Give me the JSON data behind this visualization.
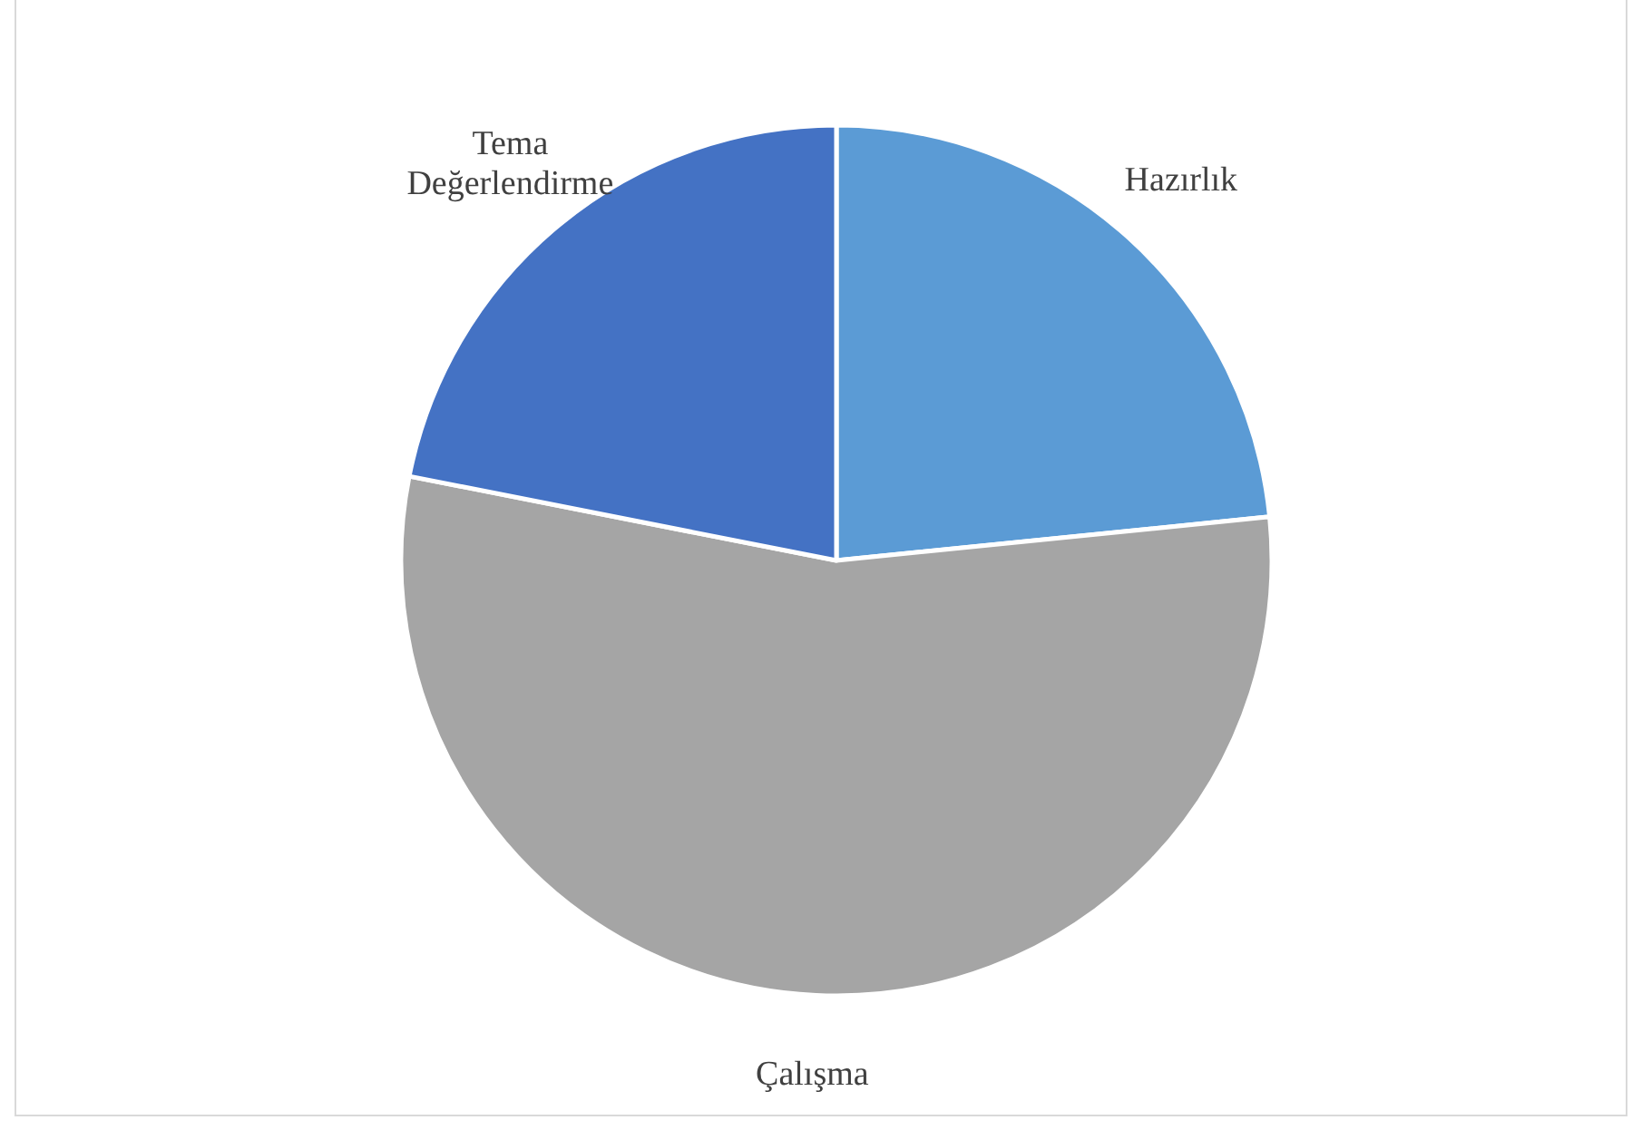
{
  "chart_data": {
    "type": "pie",
    "categories": [
      "Hazırlık",
      "Çalışma",
      "Tema Değerlendirme"
    ],
    "values": [
      23.4,
      54.7,
      21.9
    ],
    "colors": [
      "#5b9bd5",
      "#a5a5a5",
      "#4472c4"
    ]
  }
}
